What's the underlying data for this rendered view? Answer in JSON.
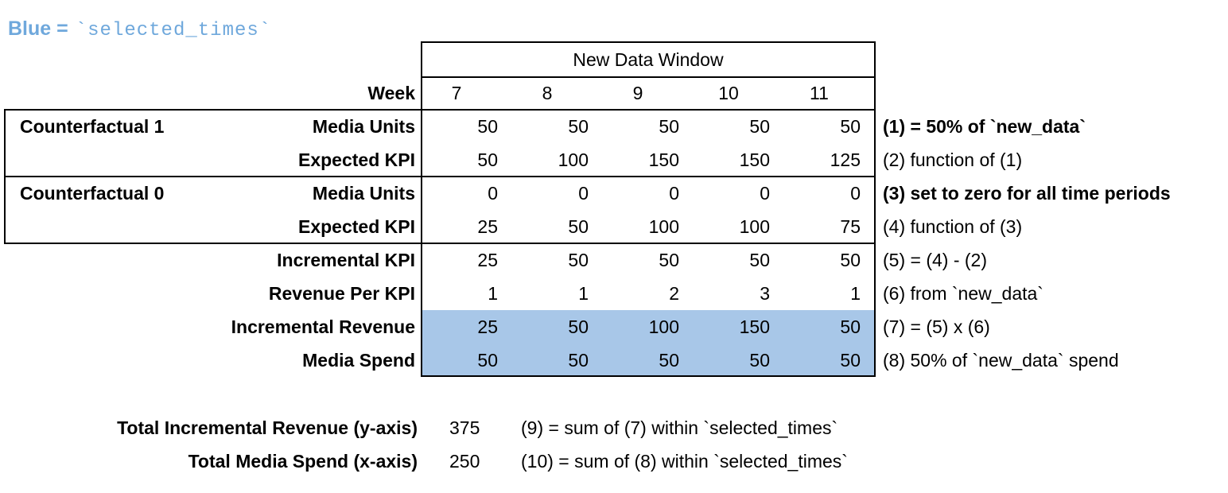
{
  "legend": {
    "prefix": "Blue =",
    "code": "`selected_times`"
  },
  "colors": {
    "highlight_blue": "#a8c7e8",
    "legend_blue": "#6fa8dc",
    "border_black": "#000000"
  },
  "chart_data": {
    "type": "table",
    "title": "New Data Window",
    "week_header": "Week",
    "weeks": [
      "7",
      "8",
      "9",
      "10",
      "11"
    ],
    "rows": [
      {
        "group": "Counterfactual 1",
        "label": "Media Units",
        "values": [
          "50",
          "50",
          "50",
          "50",
          "50"
        ],
        "note": "(1) = 50% of `new_data`",
        "note_bold": true,
        "highlight": false
      },
      {
        "group": "",
        "label": "Expected KPI",
        "values": [
          "50",
          "100",
          "150",
          "150",
          "125"
        ],
        "note": "(2) function of (1)",
        "note_bold": false,
        "highlight": false
      },
      {
        "group": "Counterfactual 0",
        "label": "Media Units",
        "values": [
          "0",
          "0",
          "0",
          "0",
          "0"
        ],
        "note": "(3) set to zero for all time periods",
        "note_bold": true,
        "highlight": false
      },
      {
        "group": "",
        "label": "Expected KPI",
        "values": [
          "25",
          "50",
          "100",
          "100",
          "75"
        ],
        "note": "(4) function of (3)",
        "note_bold": false,
        "highlight": false
      },
      {
        "group": "",
        "label": "Incremental KPI",
        "values": [
          "25",
          "50",
          "50",
          "50",
          "50"
        ],
        "note": "(5) = (4) - (2)",
        "note_bold": false,
        "highlight": false
      },
      {
        "group": "",
        "label": "Revenue Per KPI",
        "values": [
          "1",
          "1",
          "2",
          "3",
          "1"
        ],
        "note": "(6) from `new_data`",
        "note_bold": false,
        "highlight": false
      },
      {
        "group": "",
        "label": "Incremental Revenue",
        "values": [
          "25",
          "50",
          "100",
          "150",
          "50"
        ],
        "note": "(7) = (5) x (6)",
        "note_bold": false,
        "highlight": true
      },
      {
        "group": "",
        "label": "Media Spend",
        "values": [
          "50",
          "50",
          "50",
          "50",
          "50"
        ],
        "note": "(8) 50% of `new_data` spend",
        "note_bold": false,
        "highlight": true
      }
    ],
    "totals": [
      {
        "label": "Total Incremental Revenue (y-axis)",
        "value": "375",
        "note": "(9) = sum of (7) within `selected_times`"
      },
      {
        "label": "Total Media Spend (x-axis)",
        "value": "250",
        "note": "(10) = sum of (8) within `selected_times`"
      }
    ]
  }
}
